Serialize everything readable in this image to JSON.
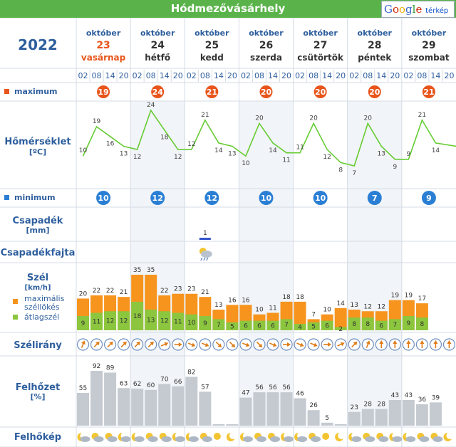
{
  "header": {
    "title": "Hódmezővásárhely",
    "logo_text": "Google",
    "logo_sub": "térkép"
  },
  "year": "2022",
  "hours": [
    "02",
    "08",
    "14",
    "20"
  ],
  "rows": {
    "maximum": "maximum",
    "temperature": "Hőmérséklet",
    "temperature_unit": "[ºC]",
    "minimum": "minimum",
    "precip": "Csapadék",
    "precip_unit": "[mm]",
    "precip_type": "Csapadékfajta",
    "wind": "Szél",
    "wind_unit": "[km/h]",
    "wind_gust_legend": "maximális széllökés",
    "wind_avg_legend": "átlagszél",
    "wind_dir": "Szélirány",
    "cloud": "Felhőzet",
    "cloud_unit": "[%]",
    "cloud_pic": "Felhőkép"
  },
  "days": [
    {
      "month": "október",
      "num": "23",
      "name": "vasárnap",
      "max": "19",
      "min": "10"
    },
    {
      "month": "október",
      "num": "24",
      "name": "hétfő",
      "max": "24",
      "min": "12"
    },
    {
      "month": "október",
      "num": "25",
      "name": "kedd",
      "max": "21",
      "min": "12"
    },
    {
      "month": "október",
      "num": "26",
      "name": "szerda",
      "max": "20",
      "min": "10"
    },
    {
      "month": "október",
      "num": "27",
      "name": "csütörtök",
      "max": "20",
      "min": "10"
    },
    {
      "month": "október",
      "num": "28",
      "name": "péntek",
      "max": "20",
      "min": "7"
    },
    {
      "month": "október",
      "num": "29",
      "name": "szombat",
      "max": "21",
      "min": "9"
    }
  ],
  "colors": {
    "header": "#5ab34a",
    "accent_blue": "#2e5f9e",
    "max_badge": "#e8541a",
    "min_badge": "#2a7fd4",
    "temp_line": "#66cc33",
    "gust_bar": "#f7941d",
    "avg_bar": "#8cc63f",
    "cloud_bar": "#c4cad0",
    "sunday": "#e8541a"
  },
  "chart_data": {
    "type": "line",
    "x_label_format": "day + hour",
    "categories_per_day": [
      "02",
      "08",
      "14",
      "20"
    ],
    "temperature": {
      "values": [
        10,
        19,
        16,
        13,
        12,
        24,
        18,
        12,
        12,
        21,
        14,
        13,
        10,
        20,
        14,
        11,
        11,
        20,
        12,
        8,
        7,
        20,
        13,
        9,
        9,
        21,
        14,
        null
      ]
    },
    "precipitation": {
      "values": [
        null,
        null,
        null,
        null,
        null,
        null,
        null,
        null,
        null,
        1,
        null,
        null,
        null,
        null,
        null,
        null,
        null,
        null,
        null,
        null,
        null,
        null,
        null,
        null,
        null,
        null,
        null,
        null
      ]
    },
    "wind_gust": {
      "values": [
        20,
        22,
        22,
        21,
        35,
        35,
        22,
        23,
        23,
        21,
        13,
        16,
        16,
        10,
        11,
        18,
        18,
        7,
        10,
        14,
        13,
        12,
        12,
        19,
        19,
        17
      ]
    },
    "wind_avg": {
      "values": [
        9,
        11,
        12,
        12,
        18,
        13,
        12,
        11,
        10,
        9,
        7,
        5,
        6,
        6,
        6,
        7,
        4,
        5,
        6,
        2,
        8,
        8,
        6,
        7,
        9,
        8
      ]
    },
    "wind_direction": {
      "values": [
        "NNE",
        "NE",
        "NE",
        "NE",
        "NE",
        "NE",
        "ENE",
        "E",
        "ESE",
        "ESE",
        "SE",
        "SE",
        "ESE",
        "SE",
        "ESE",
        "E",
        "ESE",
        "ESE",
        "E",
        "ENE",
        "NE",
        "NNE",
        "N",
        "N",
        "N",
        "N",
        "N",
        "N"
      ]
    },
    "cloud_cover": {
      "values": [
        55,
        92,
        89,
        63,
        62,
        60,
        70,
        66,
        82,
        57,
        0,
        0,
        47,
        56,
        56,
        56,
        46,
        26,
        5,
        0,
        23,
        28,
        28,
        43,
        43,
        36,
        39
      ]
    }
  }
}
